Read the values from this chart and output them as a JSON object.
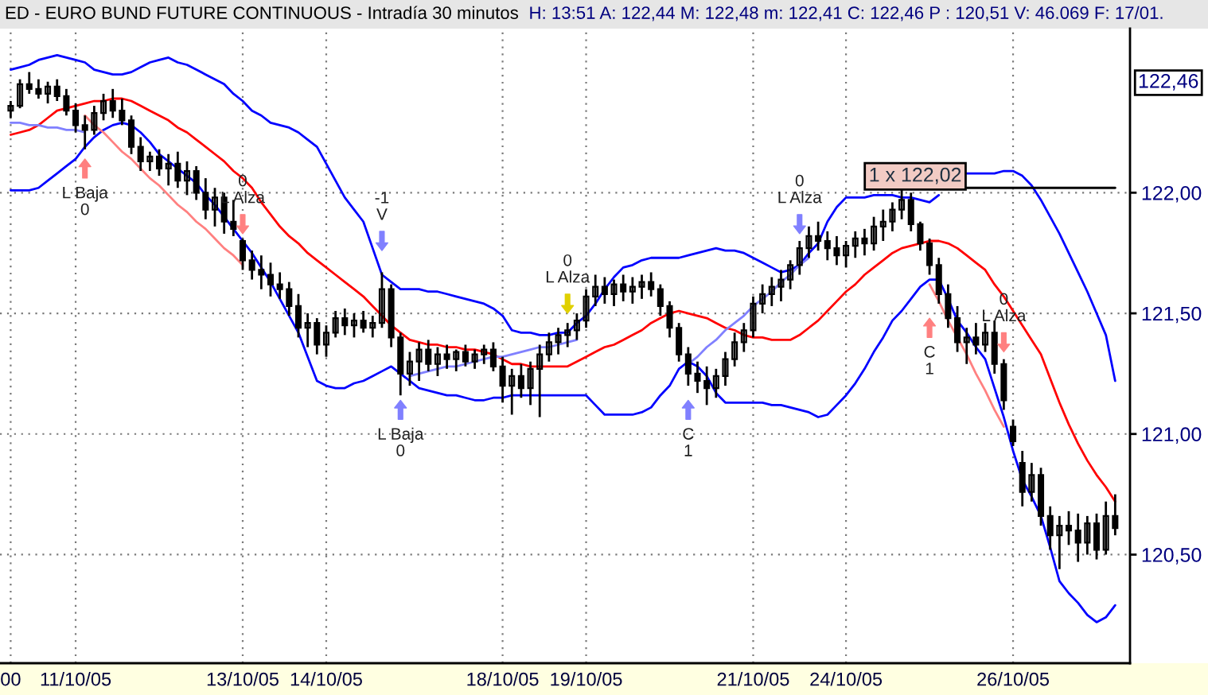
{
  "chart_data": {
    "type": "candlestick",
    "title": "ED - EURO BUND FUTURE CONTINUOUS - Intradía 30 minutos",
    "subtitle": "H: 13:51 A: 122,44 M: 122,48 m: 122,41 C: 122,46 P : 120,51 V: 46.069 F: 17/01.",
    "categories": [
      "00",
      null,
      null,
      null,
      null,
      null,
      null,
      "11/10/05",
      null,
      null,
      null,
      null,
      null,
      null,
      null,
      null,
      null,
      null,
      null,
      null,
      null,
      null,
      null,
      null,
      null,
      "13/10/05",
      null,
      null,
      null,
      null,
      null,
      null,
      null,
      null,
      "14/10/05",
      null,
      null,
      null,
      null,
      null,
      null,
      null,
      null,
      null,
      null,
      null,
      null,
      null,
      null,
      null,
      null,
      null,
      null,
      "18/10/05",
      null,
      null,
      null,
      null,
      null,
      null,
      null,
      null,
      "19/10/05",
      null,
      null,
      null,
      null,
      null,
      null,
      null,
      null,
      null,
      null,
      null,
      null,
      null,
      null,
      null,
      null,
      null,
      "21/10/05",
      null,
      null,
      null,
      null,
      null,
      null,
      null,
      null,
      null,
      "24/10/05",
      null,
      null,
      null,
      null,
      null,
      null,
      null,
      null,
      null,
      null,
      null,
      null,
      null,
      null,
      null,
      null,
      null,
      "26/10/05",
      null,
      null,
      null,
      null,
      null,
      null,
      null,
      null,
      null,
      null,
      null
    ],
    "ylim": [
      120.05,
      122.68
    ],
    "yticks": [
      {
        "value": 120.5,
        "label": "120,50"
      },
      {
        "value": 121.0,
        "label": "121,00"
      },
      {
        "value": 121.5,
        "label": "121,50"
      },
      {
        "value": 122.0,
        "label": "122,00"
      }
    ],
    "grid": true,
    "series": [
      {
        "color": "#000000",
        "ohlc": [
          [
            122.34,
            122.38,
            122.31,
            122.36
          ],
          [
            122.36,
            122.47,
            122.35,
            122.45
          ],
          [
            122.45,
            122.5,
            122.41,
            122.43
          ],
          [
            122.43,
            122.47,
            122.39,
            122.41
          ],
          [
            122.41,
            122.46,
            122.37,
            122.44
          ],
          [
            122.44,
            122.47,
            122.38,
            122.4
          ],
          [
            122.4,
            122.43,
            122.32,
            122.34
          ],
          [
            122.34,
            122.37,
            122.25,
            122.28
          ],
          [
            122.28,
            122.32,
            122.18,
            122.26
          ],
          [
            122.26,
            122.36,
            122.24,
            122.33
          ],
          [
            122.33,
            122.41,
            122.3,
            122.38
          ],
          [
            122.38,
            122.43,
            122.31,
            122.34
          ],
          [
            122.34,
            122.39,
            122.28,
            122.3
          ],
          [
            122.3,
            122.32,
            122.16,
            122.19
          ],
          [
            122.19,
            122.23,
            122.09,
            122.13
          ],
          [
            122.13,
            122.17,
            122.09,
            122.15
          ],
          [
            122.15,
            122.18,
            122.07,
            122.1
          ],
          [
            122.1,
            122.16,
            122.03,
            122.12
          ],
          [
            122.12,
            122.17,
            122.02,
            122.05
          ],
          [
            122.05,
            122.13,
            121.99,
            122.09
          ],
          [
            122.09,
            122.11,
            121.97,
            122.0
          ],
          [
            122.0,
            122.06,
            121.89,
            121.93
          ],
          [
            121.93,
            122.02,
            121.86,
            121.98
          ],
          [
            121.98,
            122.0,
            121.83,
            121.88
          ],
          [
            121.88,
            121.97,
            121.82,
            121.85
          ],
          [
            121.8,
            121.81,
            121.68,
            121.72
          ],
          [
            121.72,
            121.76,
            121.64,
            121.68
          ],
          [
            121.68,
            121.74,
            121.6,
            121.66
          ],
          [
            121.66,
            121.71,
            121.57,
            121.62
          ],
          [
            121.62,
            121.67,
            121.56,
            121.6
          ],
          [
            121.6,
            121.63,
            121.49,
            121.53
          ],
          [
            121.53,
            121.58,
            121.4,
            121.44
          ],
          [
            121.44,
            121.5,
            121.36,
            121.46
          ],
          [
            121.46,
            121.48,
            121.33,
            121.37
          ],
          [
            121.37,
            121.45,
            121.32,
            121.42
          ],
          [
            121.42,
            121.51,
            121.4,
            121.48
          ],
          [
            121.48,
            121.52,
            121.41,
            121.45
          ],
          [
            121.45,
            121.5,
            121.4,
            121.47
          ],
          [
            121.47,
            121.51,
            121.42,
            121.44
          ],
          [
            121.44,
            121.49,
            121.4,
            121.46
          ],
          [
            121.46,
            121.67,
            121.44,
            121.6
          ],
          [
            121.6,
            121.62,
            121.36,
            121.4
          ],
          [
            121.4,
            121.42,
            121.16,
            121.25
          ],
          [
            121.25,
            121.34,
            121.2,
            121.3
          ],
          [
            121.3,
            121.38,
            121.22,
            121.35
          ],
          [
            121.35,
            121.39,
            121.26,
            121.29
          ],
          [
            121.29,
            121.36,
            121.24,
            121.33
          ],
          [
            121.33,
            121.37,
            121.27,
            121.31
          ],
          [
            121.31,
            121.35,
            121.26,
            121.34
          ],
          [
            121.34,
            121.37,
            121.28,
            121.3
          ],
          [
            121.3,
            121.35,
            121.27,
            121.33
          ],
          [
            121.33,
            121.37,
            121.29,
            121.35
          ],
          [
            121.35,
            121.38,
            121.26,
            121.28
          ],
          [
            121.28,
            121.32,
            121.13,
            121.2
          ],
          [
            121.2,
            121.27,
            121.08,
            121.24
          ],
          [
            121.24,
            121.29,
            121.15,
            121.19
          ],
          [
            121.19,
            121.3,
            121.12,
            121.27
          ],
          [
            121.27,
            121.37,
            121.07,
            121.33
          ],
          [
            121.33,
            121.42,
            121.3,
            121.38
          ],
          [
            121.38,
            121.44,
            121.33,
            121.41
          ],
          [
            121.41,
            121.46,
            121.36,
            121.43
          ],
          [
            121.43,
            121.5,
            121.39,
            121.47
          ],
          [
            121.47,
            121.6,
            121.44,
            121.57
          ],
          [
            121.57,
            121.66,
            121.53,
            121.61
          ],
          [
            121.61,
            121.65,
            121.54,
            121.58
          ],
          [
            121.58,
            121.64,
            121.53,
            121.62
          ],
          [
            121.62,
            121.66,
            121.55,
            121.59
          ],
          [
            121.59,
            121.65,
            121.54,
            121.61
          ],
          [
            121.61,
            121.66,
            121.56,
            121.63
          ],
          [
            121.63,
            121.67,
            121.57,
            121.6
          ],
          [
            121.6,
            121.62,
            121.49,
            121.53
          ],
          [
            121.53,
            121.55,
            121.4,
            121.44
          ],
          [
            121.44,
            121.46,
            121.3,
            121.33
          ],
          [
            121.33,
            121.36,
            121.2,
            121.25
          ],
          [
            121.25,
            121.3,
            121.17,
            121.22
          ],
          [
            121.22,
            121.28,
            121.12,
            121.19
          ],
          [
            121.19,
            121.27,
            121.15,
            121.24
          ],
          [
            121.24,
            121.34,
            121.2,
            121.31
          ],
          [
            121.31,
            121.42,
            121.28,
            121.38
          ],
          [
            121.38,
            121.46,
            121.34,
            121.43
          ],
          [
            121.43,
            121.57,
            121.4,
            121.54
          ],
          [
            121.54,
            121.62,
            121.5,
            121.58
          ],
          [
            121.58,
            121.65,
            121.53,
            121.61
          ],
          [
            121.61,
            121.68,
            121.55,
            121.64
          ],
          [
            121.64,
            121.72,
            121.6,
            121.7
          ],
          [
            121.7,
            121.8,
            121.66,
            121.77
          ],
          [
            121.77,
            121.86,
            121.73,
            121.82
          ],
          [
            121.82,
            121.88,
            121.76,
            121.8
          ],
          [
            121.8,
            121.84,
            121.72,
            121.77
          ],
          [
            121.77,
            121.82,
            121.7,
            121.74
          ],
          [
            121.74,
            121.8,
            121.69,
            121.78
          ],
          [
            121.78,
            121.84,
            121.73,
            121.81
          ],
          [
            121.81,
            121.85,
            121.74,
            121.79
          ],
          [
            121.79,
            121.9,
            121.76,
            121.86
          ],
          [
            121.86,
            121.93,
            121.8,
            121.88
          ],
          [
            121.88,
            121.96,
            121.84,
            121.93
          ],
          [
            121.93,
            122.02,
            121.89,
            121.97
          ],
          [
            121.97,
            122.0,
            121.84,
            121.87
          ],
          [
            121.87,
            121.88,
            121.76,
            121.79
          ],
          [
            121.79,
            121.81,
            121.66,
            121.7
          ],
          [
            121.7,
            121.73,
            121.54,
            121.58
          ],
          [
            121.58,
            121.62,
            121.44,
            121.48
          ],
          [
            121.48,
            121.53,
            121.34,
            121.38
          ],
          [
            121.38,
            121.44,
            121.29,
            121.4
          ],
          [
            121.4,
            121.46,
            121.33,
            121.37
          ],
          [
            121.37,
            121.46,
            121.34,
            121.42
          ],
          [
            121.42,
            121.47,
            121.25,
            121.29
          ],
          [
            121.29,
            121.31,
            121.1,
            121.14
          ],
          [
            121.03,
            121.06,
            120.95,
            120.97
          ],
          [
            120.88,
            120.93,
            120.7,
            120.76
          ],
          [
            120.76,
            120.88,
            120.72,
            120.83
          ],
          [
            120.83,
            120.86,
            120.62,
            120.66
          ],
          [
            120.66,
            120.7,
            120.52,
            120.58
          ],
          [
            120.58,
            120.66,
            120.44,
            120.62
          ],
          [
            120.62,
            120.68,
            120.54,
            120.6
          ],
          [
            120.6,
            120.67,
            120.47,
            120.55
          ],
          [
            120.55,
            120.66,
            120.5,
            120.63
          ],
          [
            120.63,
            120.67,
            120.48,
            120.52
          ],
          [
            120.52,
            120.72,
            120.5,
            120.66
          ],
          [
            120.66,
            120.75,
            120.58,
            120.61
          ]
        ]
      },
      {
        "type": "line",
        "color": "#0000ff",
        "values": [
          122.51,
          122.52,
          122.53,
          122.55,
          122.56,
          122.57,
          122.56,
          122.55,
          122.54,
          122.51,
          122.5,
          122.49,
          122.49,
          122.5,
          122.52,
          122.54,
          122.55,
          122.56,
          122.54,
          122.53,
          122.51,
          122.49,
          122.47,
          122.45,
          122.41,
          122.38,
          122.34,
          122.32,
          122.29,
          122.28,
          122.27,
          122.25,
          122.22,
          122.19,
          122.12,
          122.05,
          121.98,
          121.93,
          121.88,
          121.77,
          121.66,
          121.63,
          121.6,
          121.6,
          121.6,
          121.59,
          121.59,
          121.58,
          121.57,
          121.56,
          121.55,
          121.54,
          121.52,
          121.49,
          121.43,
          121.42,
          121.42,
          121.41,
          121.41,
          121.42,
          121.42,
          121.46,
          121.49,
          121.54,
          121.6,
          121.65,
          121.69,
          121.7,
          121.72,
          121.73,
          121.73,
          121.73,
          121.73,
          121.74,
          121.75,
          121.76,
          121.77,
          121.76,
          121.76,
          121.75,
          121.73,
          121.71,
          121.69,
          121.67,
          121.68,
          121.7,
          121.75,
          121.79,
          121.88,
          121.94,
          121.98,
          121.98,
          121.98,
          121.99,
          121.99,
          121.99,
          121.98,
          121.98,
          121.97,
          121.96,
          121.99,
          null,
          null,
          122.08,
          122.08,
          122.08,
          122.08,
          122.09,
          122.09,
          122.07,
          122.03,
          121.97,
          121.9,
          121.83,
          121.75,
          121.67,
          121.59,
          121.5,
          121.41,
          121.22
        ]
      },
      {
        "type": "line",
        "color": "#ff0000",
        "values": [
          122.24,
          122.25,
          122.26,
          122.28,
          122.31,
          122.34,
          122.35,
          122.36,
          122.37,
          122.38,
          122.38,
          122.39,
          122.39,
          122.38,
          122.36,
          122.34,
          122.32,
          122.3,
          122.27,
          122.25,
          122.22,
          122.19,
          122.16,
          122.13,
          122.09,
          122.06,
          122.02,
          121.96,
          121.91,
          121.86,
          121.82,
          121.79,
          121.75,
          121.72,
          121.69,
          121.66,
          121.63,
          121.6,
          121.57,
          121.53,
          121.49,
          121.45,
          121.42,
          121.39,
          121.38,
          121.37,
          121.37,
          121.36,
          121.36,
          121.35,
          121.35,
          121.34,
          121.33,
          121.31,
          121.29,
          121.29,
          121.28,
          121.28,
          121.28,
          121.28,
          121.28,
          121.3,
          121.32,
          121.34,
          121.36,
          121.37,
          121.39,
          121.41,
          121.43,
          121.46,
          121.48,
          121.5,
          121.51,
          121.5,
          121.49,
          121.48,
          121.46,
          121.44,
          121.43,
          121.41,
          121.4,
          121.4,
          121.39,
          121.39,
          121.39,
          121.41,
          121.44,
          121.47,
          121.51,
          121.55,
          121.59,
          121.62,
          121.66,
          121.69,
          121.72,
          121.75,
          121.77,
          121.78,
          121.79,
          121.8,
          121.8,
          121.79,
          121.77,
          121.74,
          121.71,
          121.68,
          121.62,
          121.57,
          121.51,
          121.45,
          121.39,
          121.33,
          121.23,
          121.13,
          121.04,
          120.96,
          120.89,
          120.83,
          120.78,
          120.72
        ]
      },
      {
        "type": "line",
        "color": "#0000ff",
        "values": [
          122.01,
          122.01,
          122.01,
          122.02,
          122.05,
          122.08,
          122.11,
          122.14,
          122.19,
          122.23,
          122.26,
          122.28,
          122.29,
          122.28,
          122.25,
          122.21,
          122.16,
          122.13,
          122.1,
          122.07,
          122.04,
          121.99,
          121.95,
          121.9,
          121.85,
          121.8,
          121.75,
          121.69,
          121.63,
          121.56,
          121.49,
          121.42,
          121.32,
          121.22,
          121.2,
          121.19,
          121.19,
          121.21,
          121.22,
          121.24,
          121.26,
          121.28,
          121.25,
          121.22,
          121.19,
          121.18,
          121.17,
          121.16,
          121.16,
          121.15,
          121.14,
          121.14,
          121.15,
          121.15,
          121.16,
          121.16,
          121.16,
          121.16,
          121.16,
          121.16,
          121.16,
          121.16,
          121.16,
          121.12,
          121.08,
          121.08,
          121.08,
          121.08,
          121.09,
          121.11,
          121.16,
          121.2,
          121.27,
          121.3,
          121.28,
          121.24,
          121.17,
          121.13,
          121.13,
          121.13,
          121.13,
          121.13,
          121.12,
          121.12,
          121.11,
          121.1,
          121.09,
          121.07,
          121.08,
          121.12,
          121.16,
          121.21,
          121.27,
          121.34,
          121.4,
          121.47,
          121.51,
          121.56,
          121.61,
          121.64,
          121.64,
          121.56,
          121.47,
          121.42,
          121.36,
          121.31,
          121.19,
          121.07,
          120.93,
          120.81,
          120.74,
          120.66,
          120.53,
          120.39,
          120.34,
          120.3,
          120.25,
          120.22,
          120.24,
          120.29
        ]
      },
      {
        "type": "line",
        "color": "#8080ff",
        "values": [
          122.29,
          122.29,
          122.28,
          122.28,
          122.27,
          122.27,
          122.26,
          122.26,
          122.25,
          null,
          null,
          null,
          null,
          null,
          null,
          null,
          null,
          null,
          null,
          null,
          null,
          null,
          null,
          null,
          null,
          null,
          null,
          null,
          null,
          null,
          null,
          null,
          null,
          null,
          null,
          null,
          null,
          null,
          null,
          null,
          null,
          null,
          null,
          121.24,
          121.25,
          121.26,
          121.27,
          121.28,
          121.28,
          121.29,
          121.3,
          121.31,
          121.32,
          121.32,
          121.33,
          121.34,
          121.35,
          121.36,
          121.36,
          121.37,
          121.38,
          121.39,
          null,
          null,
          null,
          null,
          null,
          null,
          null,
          null,
          null,
          null,
          null,
          121.29,
          121.32,
          121.36,
          121.39,
          121.43,
          121.46,
          121.49,
          121.53,
          121.56,
          121.59,
          121.63,
          121.66,
          121.7,
          121.73,
          null,
          null,
          null,
          null,
          null,
          null,
          null,
          null,
          null,
          null,
          null,
          null,
          null,
          null,
          null,
          null,
          null,
          null,
          null,
          null,
          null,
          null,
          null,
          null,
          null,
          null,
          null,
          null,
          null,
          null,
          null,
          null,
          null
        ]
      },
      {
        "type": "line",
        "color": "#ff8080",
        "values": [
          null,
          null,
          null,
          null,
          null,
          null,
          null,
          null,
          122.32,
          122.28,
          122.25,
          122.21,
          122.17,
          122.14,
          122.1,
          122.06,
          122.03,
          121.99,
          121.95,
          121.92,
          121.88,
          121.85,
          121.81,
          121.77,
          121.74,
          121.7,
          null,
          null,
          null,
          null,
          null,
          null,
          null,
          null,
          null,
          null,
          null,
          null,
          null,
          null,
          null,
          null,
          null,
          null,
          null,
          null,
          null,
          null,
          null,
          null,
          null,
          null,
          null,
          null,
          null,
          null,
          null,
          null,
          null,
          null,
          null,
          null,
          null,
          null,
          null,
          null,
          null,
          null,
          null,
          null,
          null,
          null,
          null,
          null,
          null,
          null,
          null,
          null,
          null,
          null,
          null,
          null,
          null,
          null,
          null,
          null,
          null,
          null,
          null,
          null,
          null,
          null,
          null,
          null,
          null,
          null,
          null,
          null,
          null,
          121.62,
          121.55,
          121.47,
          121.4,
          121.33,
          121.25,
          121.18,
          121.1,
          121.03,
          null,
          null,
          null,
          null,
          null,
          null,
          null,
          null,
          null,
          null,
          null,
          null
        ]
      },
      {
        "type": "line",
        "color": "#000000",
        "values": [
          null,
          null,
          null,
          null,
          null,
          null,
          null,
          null,
          null,
          null,
          null,
          null,
          null,
          null,
          null,
          null,
          null,
          null,
          null,
          null,
          null,
          null,
          null,
          null,
          null,
          null,
          null,
          null,
          null,
          null,
          null,
          null,
          null,
          null,
          null,
          null,
          null,
          null,
          null,
          null,
          null,
          null,
          null,
          null,
          null,
          null,
          null,
          null,
          null,
          null,
          null,
          null,
          null,
          null,
          null,
          null,
          null,
          null,
          null,
          null,
          null,
          null,
          null,
          null,
          null,
          null,
          null,
          null,
          null,
          null,
          null,
          null,
          null,
          null,
          null,
          null,
          null,
          null,
          null,
          null,
          null,
          null,
          null,
          null,
          null,
          null,
          null,
          null,
          null,
          null,
          null,
          null,
          null,
          null,
          null,
          null,
          null,
          null,
          null,
          null,
          null,
          null,
          null,
          122.02,
          122.02,
          122.02,
          122.02,
          122.02,
          122.02,
          122.02,
          122.02,
          122.02,
          122.02,
          122.02,
          122.02,
          122.02,
          122.02,
          122.02,
          122.02,
          122.02
        ]
      },
      {
        "type": "scatter",
        "marker": "triangle",
        "values": [
          null,
          null,
          null,
          null,
          null,
          null,
          null,
          null,
          122.1,
          null,
          null,
          null,
          null,
          null,
          null,
          null,
          null,
          null,
          null,
          null,
          null,
          null,
          null,
          null,
          null,
          121.87,
          null,
          null,
          null,
          null,
          null,
          null,
          null,
          null,
          null,
          null,
          null,
          null,
          null,
          null,
          121.8,
          null,
          121.1,
          null,
          null,
          null,
          null,
          null,
          null,
          null,
          null,
          null,
          null,
          null,
          null,
          null,
          null,
          null,
          null,
          null,
          121.54,
          null,
          null,
          null,
          null,
          null,
          null,
          null,
          null,
          null,
          null,
          null,
          null,
          121.1,
          null,
          null,
          null,
          null,
          null,
          null,
          null,
          null,
          null,
          null,
          null,
          121.87,
          null,
          null,
          null,
          null,
          null,
          null,
          null,
          null,
          null,
          null,
          null,
          null,
          null,
          121.44,
          null,
          null,
          null,
          null,
          null,
          null,
          null,
          121.38,
          null,
          null,
          null,
          null,
          null,
          null,
          null,
          null,
          null,
          null,
          null,
          null
        ],
        "colors": [
          null,
          null,
          null,
          null,
          null,
          null,
          null,
          null,
          "#ff8080",
          null,
          null,
          null,
          null,
          null,
          null,
          null,
          null,
          null,
          null,
          null,
          null,
          null,
          null,
          null,
          null,
          "#ff8080",
          null,
          null,
          null,
          null,
          null,
          null,
          null,
          null,
          null,
          null,
          null,
          null,
          null,
          null,
          "#8080ff",
          null,
          "#8080ff",
          null,
          null,
          null,
          null,
          null,
          null,
          null,
          null,
          null,
          null,
          null,
          null,
          null,
          null,
          null,
          null,
          null,
          "#e0d000",
          null,
          null,
          null,
          null,
          null,
          null,
          null,
          null,
          null,
          null,
          null,
          null,
          "#8080ff",
          null,
          null,
          null,
          null,
          null,
          null,
          null,
          null,
          null,
          null,
          null,
          "#8080ff",
          null,
          null,
          null,
          null,
          null,
          null,
          null,
          null,
          null,
          null,
          null,
          null,
          null,
          "#ff8080",
          null,
          null,
          null,
          null,
          null,
          null,
          null,
          "#ff8080",
          null,
          null,
          null,
          null,
          null,
          null,
          null,
          null,
          null,
          null,
          null,
          null
        ]
      }
    ],
    "annotations": [
      "122,46",
      {
        "text": "1 x 122,02",
        "y": 122.02
      },
      {
        "text": "L Baja\n0",
        "y": 122.1
      },
      {
        "text": "0\nL Alza",
        "y": 121.87
      },
      {
        "text": "-1\nV",
        "y": 121.8
      },
      {
        "text": "L Baja\n0",
        "y": 121.1
      },
      {
        "text": "0\nL Alza",
        "y": 121.54
      },
      {
        "text": "C\n1",
        "y": 121.1
      },
      {
        "text": "0\nL Alza",
        "y": 121.87
      },
      {
        "text": "C\n1",
        "y": 121.44
      },
      {
        "text": "0\nL Alza",
        "y": 121.38
      }
    ]
  }
}
